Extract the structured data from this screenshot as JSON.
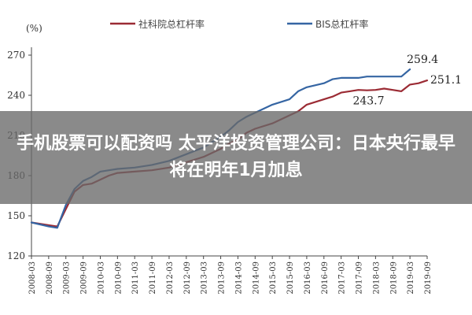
{
  "headline": "手机股票可以配资吗 太平洋投资管理公司：日本央行最早将在明年1月加息",
  "chart_data": {
    "type": "line",
    "unit_label": "(%)",
    "ylim": [
      120,
      270
    ],
    "yticks": [
      120,
      150,
      180,
      210,
      240,
      270
    ],
    "grid": false,
    "legend_position": "top",
    "categories": [
      "2008-03",
      "2008-09",
      "2009-03",
      "2009-09",
      "2010-03",
      "2010-09",
      "2011-03",
      "2011-09",
      "2012-03",
      "2012-09",
      "2013-03",
      "2013-09",
      "2014-03",
      "2014-09",
      "2015-03",
      "2015-09",
      "2016-03",
      "2016-09",
      "2017-03",
      "2017-09",
      "2018-03",
      "2018-09",
      "2019-03",
      "2019-09"
    ],
    "series": [
      {
        "name": "社科院总杠杆率",
        "color": "#9b2b34",
        "x": [
          0,
          1,
          1.5,
          2,
          2.5,
          3,
          3.5,
          4,
          4.5,
          5,
          6,
          7,
          8,
          9,
          10,
          11,
          11.5,
          12,
          12.5,
          13,
          14,
          15,
          15.5,
          16,
          17,
          17.5,
          18,
          18.5,
          19,
          19.5,
          20,
          20.5,
          21,
          21.5,
          22,
          22.5,
          23
        ],
        "values": [
          145,
          143,
          142,
          155,
          168,
          173,
          174,
          177,
          180,
          182,
          183,
          184,
          186,
          190,
          194,
          200,
          204,
          207,
          212,
          215,
          219,
          225,
          228,
          233,
          237,
          239,
          242,
          243,
          244,
          243.7,
          244,
          245,
          244,
          243,
          248,
          249,
          251.1
        ]
      },
      {
        "name": "BIS总杠杆率",
        "color": "#3565a3",
        "x": [
          0,
          1,
          1.5,
          2,
          2.5,
          3,
          3.5,
          4,
          4.5,
          5,
          6,
          7,
          8,
          9,
          10,
          11,
          11.5,
          12,
          12.5,
          13,
          14,
          15,
          15.5,
          16,
          17,
          17.5,
          18,
          18.5,
          19,
          19.5,
          20,
          20.5,
          21,
          21.5,
          22
        ],
        "values": [
          145,
          142,
          141,
          158,
          170,
          176,
          179,
          183,
          184,
          185,
          186,
          188,
          191,
          196,
          201,
          209,
          214,
          220,
          224,
          227,
          233,
          237,
          243,
          246,
          249,
          252,
          253,
          253,
          253,
          254,
          254,
          254,
          254,
          254,
          259.4
        ]
      }
    ],
    "annotations": [
      {
        "text": "259.4",
        "x": 22,
        "y": 259.4
      },
      {
        "text": "251.1",
        "x": 23,
        "y": 251.1
      },
      {
        "text": "243.7",
        "x": 19.5,
        "y": 243.7
      }
    ]
  }
}
